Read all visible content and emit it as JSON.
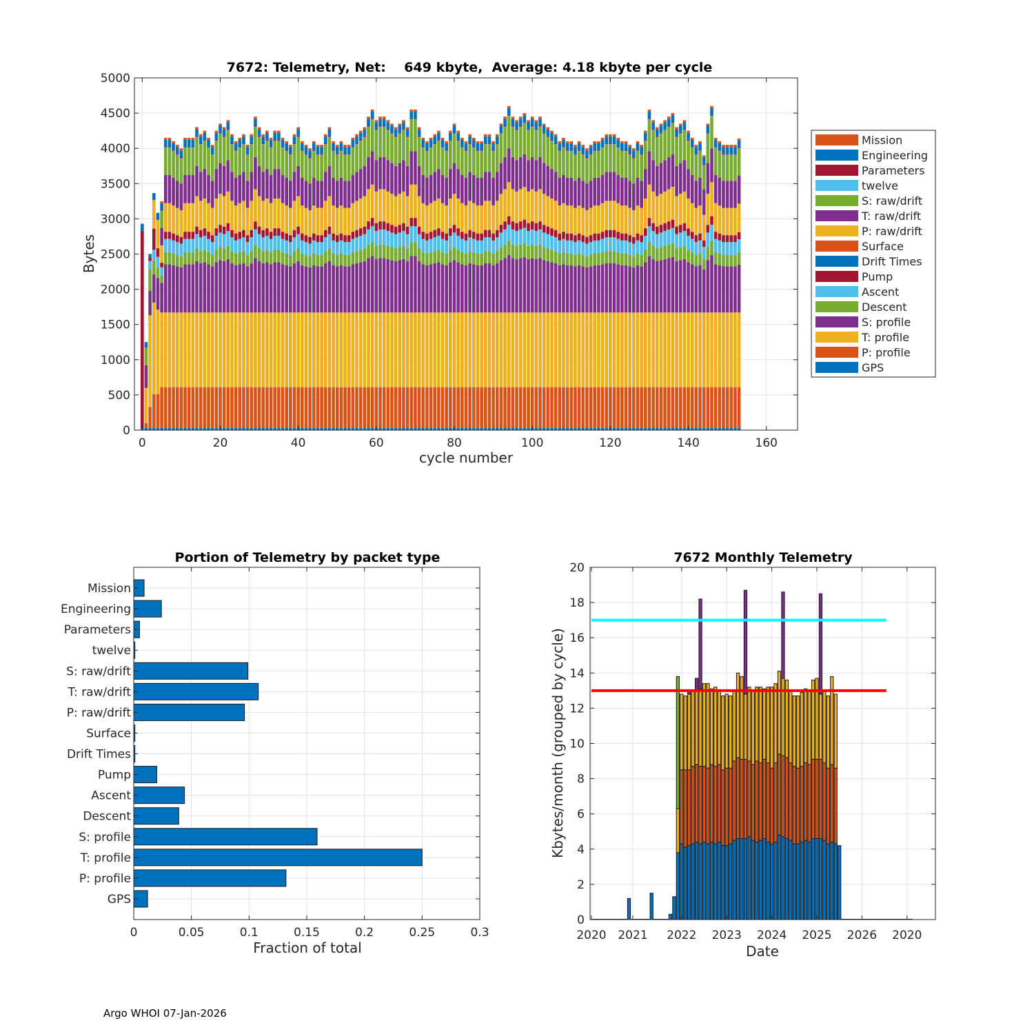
{
  "footer": "Argo WHOI 07-Jan-2026",
  "chart_data": [
    {
      "type": "bar",
      "stacked": true,
      "title": "7672: Telemetry, Net:    649 kbyte,  Average: 4.18 kbyte per cycle",
      "xlabel": "cycle number",
      "ylabel": "Bytes",
      "xlim": [
        -2,
        168
      ],
      "ylim": [
        0,
        5000
      ],
      "xticks": [
        "0",
        "20",
        "40",
        "60",
        "80",
        "100",
        "120",
        "140",
        "160"
      ],
      "yticks": [
        "0",
        "500",
        "1000",
        "1500",
        "2000",
        "2500",
        "3000",
        "3500",
        "4000",
        "4500",
        "5000"
      ],
      "grid": true,
      "legend_position": "outside-right",
      "legend": [
        "Mission",
        "Engineering",
        "Parameters",
        "twelve",
        "S: raw/drift",
        "T: raw/drift",
        "P: raw/drift",
        "Surface",
        "Drift Times",
        "Pump",
        "Ascent",
        "Descent",
        "S: profile",
        "T: profile",
        "P: profile",
        "GPS"
      ],
      "colors": [
        "#D95319",
        "#0072BD",
        "#A2142F",
        "#4DBEEE",
        "#77AC30",
        "#7E2F8E",
        "#EDB120",
        "#D95319",
        "#0072BD",
        "#A2142F",
        "#4DBEEE",
        "#77AC30",
        "#7E2F8E",
        "#EDB120",
        "#D95319",
        "#0072BD"
      ],
      "series_bottom_to_top": [
        "GPS",
        "P: profile",
        "T: profile",
        "S: profile",
        "Descent",
        "Ascent",
        "Pump",
        "Surface",
        "P: raw/drift",
        "T: raw/drift",
        "S: raw/drift",
        "twelve",
        "Parameters",
        "Engineering",
        "Mission"
      ],
      "typical_cycle_stack": {
        "GPS": 30,
        "P: profile": 580,
        "T: profile": 1060,
        "S: profile": 680,
        "Descent": 170,
        "Ascent": 190,
        "Pump": 100,
        "Surface": 5,
        "P: raw/drift": 400,
        "T: raw/drift": 400,
        "S: raw/drift": 380,
        "twelve": 5,
        "Parameters": 10,
        "Engineering": 100,
        "Mission": 30
      },
      "cycles": [
        0,
        153
      ],
      "cycle_totals_approx": [
        2950,
        1250,
        2400,
        3250,
        3200,
        3250,
        4150,
        4150,
        4100,
        4050,
        4000,
        4150,
        4150,
        4150,
        4300,
        4200,
        4250,
        4150,
        4050,
        4250,
        4350,
        4300,
        4400,
        4200,
        4100,
        4150,
        4200,
        4050,
        4200,
        4450,
        4300,
        4200,
        4250,
        4150,
        4250,
        4250,
        4150,
        4100,
        4050,
        4200,
        4300,
        4100,
        4050,
        4000,
        4100,
        4050,
        4050,
        4200,
        4300,
        4100,
        4050,
        4100,
        4050,
        4050,
        4150,
        4200,
        4250,
        4300,
        4450,
        4550,
        4400,
        4450,
        4450,
        4400,
        4350,
        4300,
        4350,
        4400,
        4300,
        4550,
        4550,
        4300,
        4150,
        4100,
        4150,
        4200,
        4250,
        4150,
        4100,
        4250,
        4350,
        4250,
        4150,
        4100,
        4200,
        4150,
        4100,
        4100,
        4200,
        4200,
        4100,
        4200,
        4350,
        4450,
        4600,
        4450,
        4400,
        4450,
        4500,
        4400,
        4450,
        4400,
        4450,
        4350,
        4300,
        4250,
        4200,
        4100,
        4150,
        4100,
        4100,
        4050,
        4100,
        4050,
        4000,
        4050,
        4100,
        4100,
        4150,
        4200,
        4200,
        4200,
        4150,
        4100,
        4100,
        4050,
        4000,
        4100,
        4050,
        4250,
        4550,
        4400,
        4300,
        4350,
        4400,
        4450,
        4500,
        4300,
        4350,
        4400,
        4250,
        4150,
        4050,
        4100,
        3900,
        4350,
        4600,
        4150,
        4100,
        4050,
        4050,
        4050,
        4050
      ],
      "cycle_overrides": {
        "0": {
          "GPS": 30,
          "Pump": 2800,
          "Engineering": 100
        },
        "1": {
          "GPS": 30,
          "P: profile": 70,
          "T: profile": 500,
          "S: profile": 320,
          "Descent": 250,
          "Engineering": 80
        },
        "2": {
          "GPS": 30,
          "P: profile": 300,
          "T: profile": 1300,
          "S: profile": 350,
          "Descent": 300,
          "Ascent": 120,
          "Pump": 50,
          "Engineering": 50
        },
        "3": {
          "GPS": 30,
          "P: profile": 480,
          "T: profile": 1300,
          "S: profile": 400,
          "Descent": 200,
          "Ascent": 150,
          "Pump": 300,
          "Surface": 5,
          "P: raw/drift": 400,
          "Engineering": 100
        },
        "4": {
          "GPS": 30,
          "P: profile": 480,
          "T: profile": 1200,
          "S: profile": 450,
          "Descent": 150,
          "Ascent": 150,
          "Pump": 120,
          "Surface": 5,
          "P: raw/drift": 400,
          "Engineering": 100
        }
      }
    },
    {
      "type": "bar",
      "orientation": "horizontal",
      "title": "Portion of Telemetry by packet type",
      "xlabel": "Fraction of total",
      "ylabel": "",
      "xlim": [
        0,
        0.3
      ],
      "xticks": [
        "0",
        "0.05",
        "0.1",
        "0.15",
        "0.2",
        "0.25",
        "0.3"
      ],
      "grid": true,
      "color": "#0072BD",
      "categories": [
        "Mission",
        "Engineering",
        "Parameters",
        "twelve",
        "S: raw/drift",
        "T: raw/drift",
        "P: raw/drift",
        "Surface",
        "Drift Times",
        "Pump",
        "Ascent",
        "Descent",
        "S: profile",
        "T: profile",
        "P: profile",
        "GPS"
      ],
      "values": [
        0.009,
        0.024,
        0.005,
        0.001,
        0.099,
        0.108,
        0.096,
        0.001,
        0.001,
        0.02,
        0.044,
        0.039,
        0.159,
        0.25,
        0.132,
        0.012
      ]
    },
    {
      "type": "bar",
      "stacked": true,
      "title": "7672 Monthly Telemetry",
      "xlabel": "Date",
      "ylabel": "Kbytes/month (grouped by cycle)",
      "ylim": [
        0,
        20
      ],
      "yticks": [
        "0",
        "2",
        "4",
        "6",
        "8",
        "10",
        "12",
        "14",
        "16",
        "18",
        "20"
      ],
      "xticks": [
        "2020",
        "2021",
        "2022",
        "2023",
        "2024",
        "2025",
        "2026",
        "2020"
      ],
      "grid": true,
      "reference_lines": [
        {
          "value": 13,
          "color": "#FF0000"
        },
        {
          "value": 17,
          "color": "#00FFFF"
        }
      ],
      "series_colors": [
        "#0072BD",
        "#D95319",
        "#EDB120",
        "#7E2F8E",
        "#77AC30"
      ],
      "months_start": "2021-10",
      "months": [
        [
          0.3,
          0,
          0,
          0,
          0
        ],
        [
          1.3,
          0,
          0,
          0,
          0
        ],
        [
          3.8,
          0,
          2.5,
          0,
          7.5
        ],
        [
          4.3,
          4.2,
          4.3,
          0,
          0
        ],
        [
          4.1,
          4.4,
          4.2,
          0,
          0
        ],
        [
          4.2,
          4.3,
          4.3,
          0.2,
          0
        ],
        [
          4.3,
          4.4,
          4.3,
          0,
          0
        ],
        [
          4.4,
          4.4,
          4.2,
          0.7,
          0
        ],
        [
          4.3,
          4.4,
          4.4,
          5.1,
          0
        ],
        [
          4.4,
          4.3,
          4.7,
          0,
          0
        ],
        [
          4.3,
          4.3,
          4.8,
          0,
          0
        ],
        [
          4.4,
          4.4,
          4.3,
          0,
          0
        ],
        [
          4.3,
          4.4,
          4.5,
          0,
          0
        ],
        [
          4.4,
          4.4,
          4.2,
          0,
          0
        ],
        [
          4.2,
          4.3,
          4.2,
          0,
          0
        ],
        [
          4.2,
          4.4,
          4.2,
          0,
          0
        ],
        [
          4.3,
          4.3,
          4.1,
          0,
          0
        ],
        [
          4.5,
          4.5,
          4.0,
          0,
          0
        ],
        [
          4.6,
          4.6,
          4.8,
          0,
          0
        ],
        [
          4.6,
          4.5,
          4.7,
          0,
          0
        ],
        [
          4.6,
          4.5,
          3.7,
          5.9,
          0
        ],
        [
          4.7,
          4.3,
          4.2,
          0,
          0
        ],
        [
          4.5,
          4.3,
          4.2,
          0,
          0
        ],
        [
          4.4,
          4.6,
          4.2,
          0,
          0
        ],
        [
          4.5,
          4.4,
          4.3,
          0,
          0
        ],
        [
          4.6,
          4.5,
          4.0,
          0,
          0
        ],
        [
          4.4,
          4.5,
          4.3,
          0,
          0
        ],
        [
          4.3,
          4.3,
          4.6,
          0,
          0
        ],
        [
          4.4,
          4.5,
          4.5,
          0,
          0
        ],
        [
          4.8,
          4.6,
          4.7,
          0,
          0
        ],
        [
          4.7,
          4.6,
          4.4,
          4.9,
          0
        ],
        [
          4.6,
          4.6,
          4.4,
          0,
          0
        ],
        [
          4.5,
          4.4,
          4.1,
          0,
          0
        ],
        [
          4.3,
          4.4,
          4.0,
          0,
          0
        ],
        [
          4.3,
          4.3,
          4.1,
          0,
          0
        ],
        [
          4.4,
          4.3,
          4.2,
          0,
          0
        ],
        [
          4.5,
          4.4,
          4.2,
          0,
          0
        ],
        [
          4.4,
          4.4,
          4.2,
          0,
          0
        ],
        [
          4.6,
          4.5,
          4.5,
          0,
          0
        ],
        [
          4.6,
          4.5,
          4.6,
          0,
          0
        ],
        [
          4.6,
          4.5,
          3.7,
          5.7,
          0
        ],
        [
          4.5,
          4.4,
          4.1,
          0,
          0
        ],
        [
          4.3,
          4.3,
          4.1,
          0,
          0
        ],
        [
          4.4,
          4.4,
          5.0,
          0,
          0
        ],
        [
          4.3,
          4.3,
          4.2,
          0,
          0
        ],
        [
          4.2,
          0,
          0,
          0,
          0
        ]
      ],
      "isolated_months": [
        {
          "month": "2020-11",
          "value": 1.2
        },
        {
          "month": "2021-05",
          "value": 1.5
        }
      ]
    }
  ]
}
